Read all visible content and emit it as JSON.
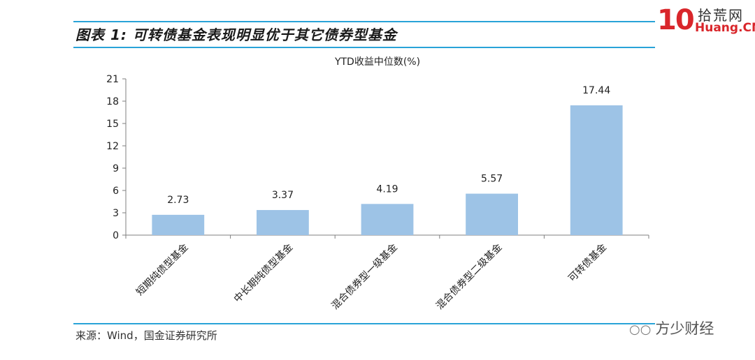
{
  "header": {
    "title": "图表 1:  可转债基金表现明显优于其它债券型基金",
    "logo_number": "10",
    "logo_cn": "拾荒网",
    "logo_en": "Huang.CN"
  },
  "footer": {
    "source": "来源：Wind，国金证券研究所",
    "watermark": "方少财经",
    "watermark_icon": "wechat-icon"
  },
  "colors": {
    "bar": "#9dc3e6",
    "rule": "#29a3d8",
    "axis": "#7f7f7f"
  },
  "chart_data": {
    "type": "bar",
    "title": "YTD收益中位数(%)",
    "categories": [
      "短期纯债型基金",
      "中长期纯债型基金",
      "混合债券型一级基金",
      "混合债券型二级基金",
      "可转债基金"
    ],
    "values": [
      2.73,
      3.37,
      4.19,
      5.57,
      17.44
    ],
    "value_labels": [
      "2.73",
      "3.37",
      "4.19",
      "5.57",
      "17.44"
    ],
    "ylim": [
      0,
      21
    ],
    "yticks": [
      0,
      3,
      6,
      9,
      12,
      15,
      18,
      21
    ],
    "xlabel": "",
    "ylabel": "",
    "grid": false,
    "legend": "none"
  }
}
